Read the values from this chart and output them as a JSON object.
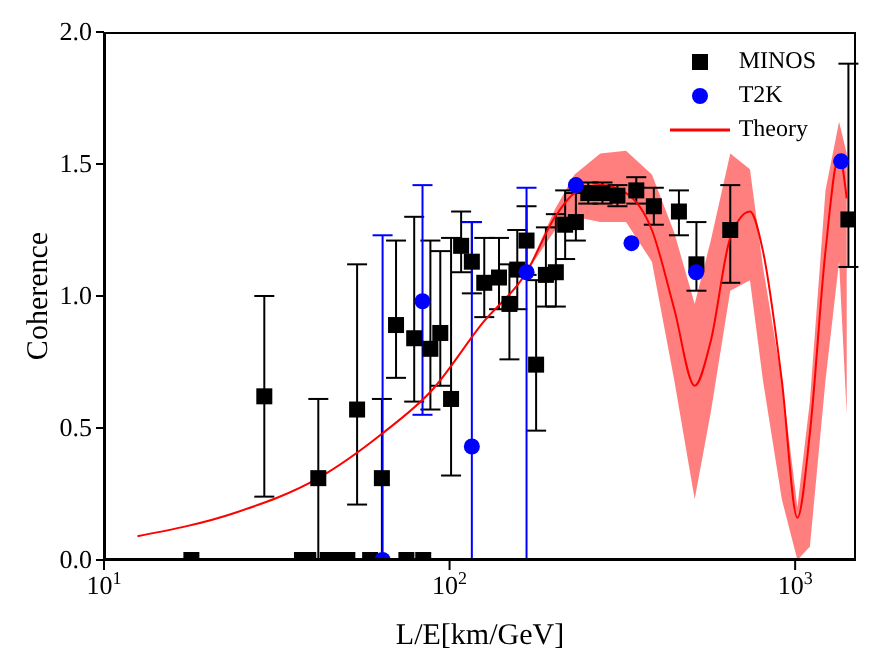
{
  "chart_data": {
    "type": "scatter",
    "xlabel": "L/E[km/GeV]",
    "ylabel": "Coherence",
    "log": "x",
    "legend": "top right",
    "grid": false,
    "xlim": [
      10,
      1500
    ],
    "xticks": [
      {
        "value": 10,
        "label": "10$^{1}$"
      },
      {
        "value": 100,
        "label": "10$^{2}$"
      },
      {
        "value": 1000,
        "label": "10$^{3}$"
      }
    ],
    "ylim": [
      0,
      2
    ],
    "yticks": [
      {
        "value": 0,
        "label": "0.0"
      },
      {
        "value": 0.5,
        "label": "0.5"
      },
      {
        "value": 1,
        "label": "1.0"
      },
      {
        "value": 1.5,
        "label": "1.5"
      },
      {
        "value": 2,
        "label": "2.0"
      }
    ],
    "series": [
      {
        "name": "MINOS",
        "marker": "square",
        "color": "#000000",
        "x": [
          17.9,
          37.4,
          39,
          44.4,
          47.5,
          50.6,
          58.9,
          75,
          83.9,
          29.1,
          41.7,
          54,
          63.7,
          70,
          79,
          88,
          94,
          101,
          108,
          116,
          126,
          139,
          149,
          157,
          167,
          178,
          190,
          203,
          216,
          232,
          252,
          277,
          306,
          347,
          390,
          461,
          518,
          649,
          1426
        ],
        "values": [
          0,
          0,
          0,
          0,
          0,
          0,
          0,
          0,
          0,
          0.62,
          0.31,
          0.57,
          0.31,
          0.89,
          0.84,
          0.8,
          0.86,
          0.61,
          1.19,
          1.13,
          1.05,
          1.07,
          0.97,
          1.1,
          1.21,
          0.74,
          1.08,
          1.09,
          1.27,
          1.28,
          1.39,
          1.39,
          1.38,
          1.4,
          1.34,
          1.32,
          1.12,
          1.25,
          1.29
        ],
        "errors": [
          null,
          null,
          null,
          null,
          null,
          null,
          null,
          null,
          null,
          [
            0.24,
            1.0
          ],
          [
            0,
            0.61
          ],
          [
            0.21,
            1.12
          ],
          [
            0,
            0.61
          ],
          [
            0.69,
            1.21
          ],
          [
            0.6,
            1.3
          ],
          [
            0.57,
            1.21
          ],
          [
            0.66,
            1.17
          ],
          [
            0.32,
            1.22
          ],
          [
            1.09,
            1.32
          ],
          [
            1.01,
            1.28
          ],
          [
            0.92,
            1.22
          ],
          [
            0.95,
            1.22
          ],
          [
            0.76,
            1.12
          ],
          [
            0.95,
            1.25
          ],
          [
            1.08,
            1.34
          ],
          [
            0.49,
            1.06
          ],
          [
            0.96,
            1.26
          ],
          [
            0.96,
            1.31
          ],
          [
            1.14,
            1.4
          ],
          [
            1.21,
            1.39
          ],
          [
            1.35,
            1.43
          ],
          [
            1.35,
            1.43
          ],
          [
            1.34,
            1.42
          ],
          [
            1.35,
            1.45
          ],
          [
            1.27,
            1.41
          ],
          [
            1.23,
            1.4
          ],
          [
            1.02,
            1.28
          ],
          [
            1.05,
            1.42
          ],
          [
            1.11,
            1.88
          ]
        ]
      },
      {
        "name": "T2K",
        "marker": "circle",
        "color": "#0000ff",
        "x": [
          64,
          83.5,
          116,
          167,
          232,
          336,
          517,
          1358
        ],
        "values": [
          0,
          0.98,
          0.43,
          1.09,
          1.42,
          1.2,
          1.09,
          1.51
        ],
        "errors": [
          [
            0,
            1.23
          ],
          [
            0.55,
            1.42
          ],
          [
            0,
            1.28
          ],
          [
            0,
            1.41
          ],
          null,
          null,
          null,
          null
        ]
      },
      {
        "name": "Theory",
        "type": "line",
        "marker": "none",
        "color": "#ff0000",
        "x": [
          12.5,
          24.1,
          41.7,
          64,
          88.5,
          125,
          167,
          202,
          230,
          273,
          324,
          385,
          447,
          512,
          570,
          649,
          740,
          807,
          915,
          1015,
          1103,
          1224,
          1340,
          1410
        ],
        "values": [
          0.09,
          0.18,
          0.31,
          0.48,
          0.64,
          0.9,
          1.09,
          1.3,
          1.39,
          1.42,
          1.39,
          1.25,
          0.95,
          0.66,
          0.83,
          1.22,
          1.32,
          1.17,
          0.68,
          0.16,
          0.48,
          1.17,
          1.53,
          1.37
        ],
        "lower": [
          0.09,
          0.18,
          0.31,
          0.48,
          0.64,
          0.9,
          1.09,
          1.25,
          1.3,
          1.28,
          1.28,
          1.13,
          0.68,
          0.23,
          0.56,
          1.02,
          1.06,
          0.68,
          0.23,
          0,
          0.05,
          0.68,
          1.13,
          0.55
        ],
        "upper": [
          0.09,
          0.18,
          0.31,
          0.48,
          0.64,
          0.9,
          1.09,
          1.33,
          1.46,
          1.54,
          1.55,
          1.46,
          1.24,
          0.97,
          1.21,
          1.54,
          1.48,
          1.11,
          0.68,
          0.2,
          0.6,
          1.4,
          1.66,
          1.54
        ]
      }
    ]
  }
}
